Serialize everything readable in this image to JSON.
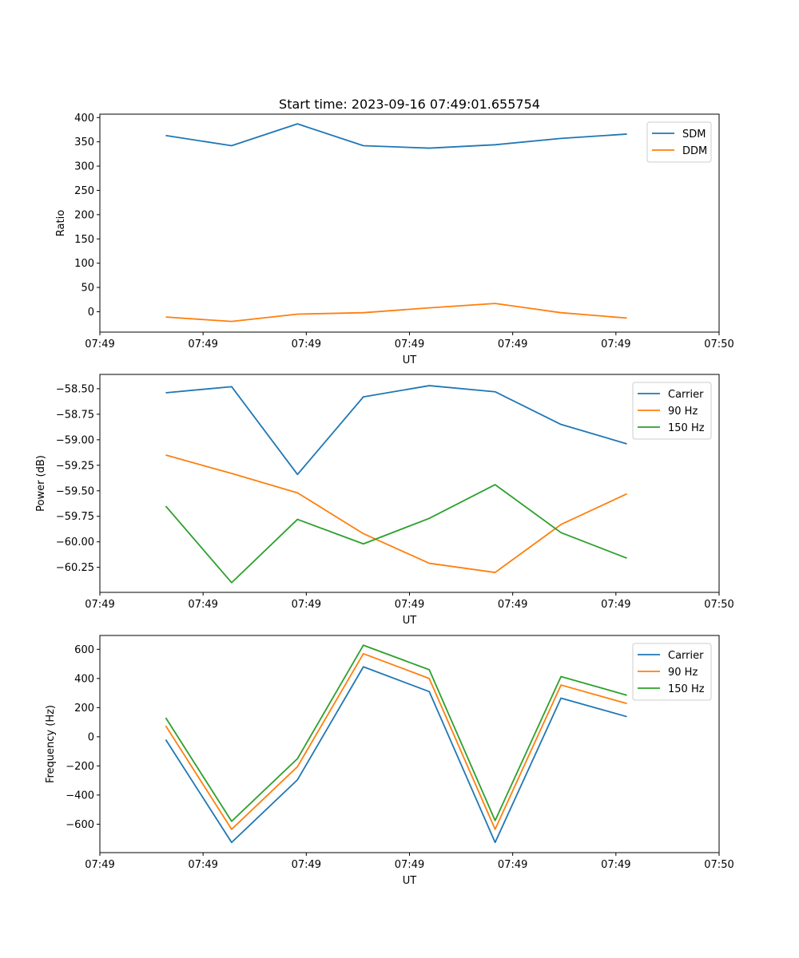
{
  "chart_data": [
    {
      "type": "line",
      "title": "Start time: 2023-09-16 07:49:01.655754",
      "xlabel": "UT",
      "ylabel": "Ratio",
      "xlim": [
        0,
        9.4
      ],
      "ylim": [
        -42,
        407
      ],
      "x": [
        1,
        2,
        3,
        4,
        5,
        6,
        7,
        8
      ],
      "x_ticks": [
        0.0,
        1.5667,
        3.1333,
        4.7,
        6.2667,
        7.8333,
        9.4
      ],
      "x_tick_labels": [
        "07:49",
        "07:49",
        "07:49",
        "07:49",
        "07:49",
        "07:49",
        "07:50"
      ],
      "y_ticks": [
        0,
        50,
        100,
        150,
        200,
        250,
        300,
        350,
        400
      ],
      "y_tick_labels": [
        "0",
        "50",
        "100",
        "150",
        "200",
        "250",
        "300",
        "350",
        "400"
      ],
      "legend_position": "top-right",
      "series": [
        {
          "name": "SDM",
          "color": "#1f77b4",
          "values": [
            363,
            342,
            387,
            342,
            337,
            344,
            357,
            366
          ]
        },
        {
          "name": "DDM",
          "color": "#ff7f0e",
          "values": [
            -11,
            -20,
            -5,
            -2,
            8,
            17,
            -2,
            -13
          ]
        }
      ]
    },
    {
      "type": "line",
      "title": "",
      "xlabel": "UT",
      "ylabel": "Power (dB)",
      "xlim": [
        0,
        9.4
      ],
      "ylim": [
        -60.495,
        -58.36
      ],
      "x": [
        1,
        2,
        3,
        4,
        5,
        6,
        7,
        8
      ],
      "x_ticks": [
        0.0,
        1.5667,
        3.1333,
        4.7,
        6.2667,
        7.8333,
        9.4
      ],
      "x_tick_labels": [
        "07:49",
        "07:49",
        "07:49",
        "07:49",
        "07:49",
        "07:49",
        "07:50"
      ],
      "y_ticks": [
        -58.5,
        -58.75,
        -59.0,
        -59.25,
        -59.5,
        -59.75,
        -60.0,
        -60.25
      ],
      "y_tick_labels": [
        "−58.50",
        "−58.75",
        "−59.00",
        "−59.25",
        "−59.50",
        "−59.75",
        "−60.00",
        "−60.25"
      ],
      "legend_position": "top-right",
      "series": [
        {
          "name": "Carrier",
          "color": "#1f77b4",
          "values": [
            -58.54,
            -58.48,
            -59.34,
            -58.58,
            -58.47,
            -58.53,
            -58.85,
            -59.04
          ]
        },
        {
          "name": "90 Hz",
          "color": "#ff7f0e",
          "values": [
            -59.15,
            -59.33,
            -59.52,
            -59.92,
            -60.21,
            -60.3,
            -59.83,
            -59.53
          ]
        },
        {
          "name": "150 Hz",
          "color": "#2ca02c",
          "values": [
            -59.65,
            -60.4,
            -59.78,
            -60.02,
            -59.77,
            -59.44,
            -59.91,
            -60.16
          ]
        }
      ]
    },
    {
      "type": "line",
      "title": "",
      "xlabel": "UT",
      "ylabel": "Frequency (Hz)",
      "xlim": [
        0,
        9.4
      ],
      "ylim": [
        -795,
        695
      ],
      "x": [
        1,
        2,
        3,
        4,
        5,
        6,
        7,
        8
      ],
      "x_ticks": [
        0.0,
        1.5667,
        3.1333,
        4.7,
        6.2667,
        7.8333,
        9.4
      ],
      "x_tick_labels": [
        "07:49",
        "07:49",
        "07:49",
        "07:49",
        "07:49",
        "07:49",
        "07:50"
      ],
      "y_ticks": [
        -600,
        -400,
        -200,
        0,
        200,
        400,
        600
      ],
      "y_tick_labels": [
        "−600",
        "−400",
        "−200",
        "0",
        "200",
        "400",
        "600"
      ],
      "legend_position": "top-right",
      "series": [
        {
          "name": "Carrier",
          "color": "#1f77b4",
          "values": [
            -20,
            -725,
            -295,
            480,
            310,
            -725,
            265,
            138
          ]
        },
        {
          "name": "90 Hz",
          "color": "#ff7f0e",
          "values": [
            75,
            -635,
            -205,
            570,
            400,
            -635,
            355,
            228
          ]
        },
        {
          "name": "150 Hz",
          "color": "#2ca02c",
          "values": [
            130,
            -580,
            -150,
            628,
            460,
            -575,
            413,
            285
          ]
        }
      ]
    }
  ]
}
